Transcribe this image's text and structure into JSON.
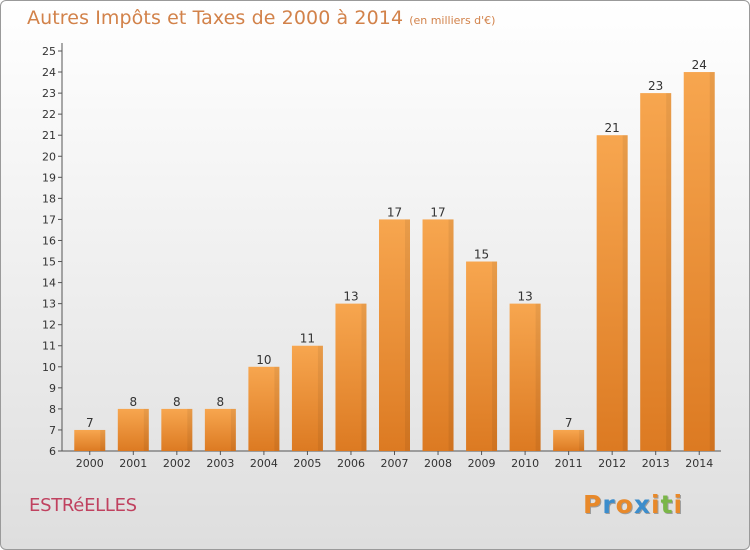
{
  "title": "Autres Impôts et Taxes de 2000 à 2014",
  "subtitle": "(en milliers d'€)",
  "commune": "ESTRéELLES",
  "brand": {
    "letters": [
      "P",
      "r",
      "o",
      "x",
      "i",
      "t",
      "i"
    ],
    "colors": [
      "#e8892a",
      "#3c8dcc",
      "#e8892a",
      "#3c8dcc",
      "#e8892a",
      "#7ab648",
      "#e8892a"
    ]
  },
  "colors": {
    "bar_light": "#f7a64f",
    "bar_dark": "#dc7a22",
    "title": "#d2824a",
    "commune": "#c0415f"
  },
  "chart_data": {
    "type": "bar",
    "title": "Autres Impôts et Taxes de 2000 à 2014",
    "subtitle": "(en milliers d'€)",
    "xlabel": "",
    "ylabel": "",
    "categories": [
      "2000",
      "2001",
      "2002",
      "2003",
      "2004",
      "2005",
      "2006",
      "2007",
      "2008",
      "2009",
      "2010",
      "2011",
      "2012",
      "2013",
      "2014"
    ],
    "values": [
      7,
      8,
      8,
      8,
      10,
      11,
      13,
      17,
      17,
      15,
      13,
      7,
      21,
      23,
      24
    ],
    "ylim": [
      6,
      25
    ],
    "yticks": [
      6,
      7,
      8,
      9,
      10,
      11,
      12,
      13,
      14,
      15,
      16,
      17,
      18,
      19,
      20,
      21,
      22,
      23,
      24,
      25
    ],
    "grid": false,
    "data_labels": true
  }
}
